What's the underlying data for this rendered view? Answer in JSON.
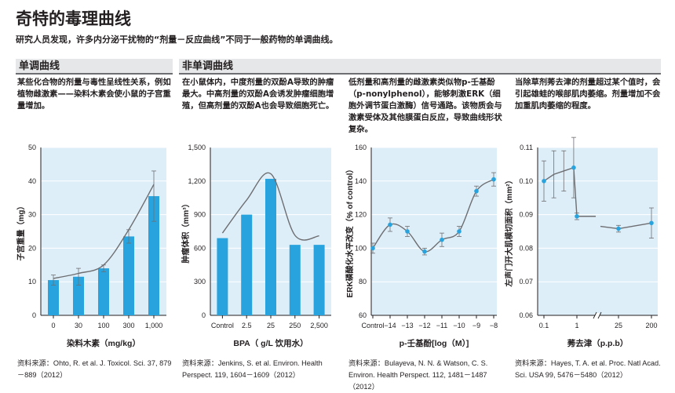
{
  "header": {
    "title": "奇特的毒理曲线",
    "subtitle": "研究人员发现，许多内分泌干扰物的“剂量－反应曲线”不同于一般药物的单调曲线。"
  },
  "sections": [
    {
      "title": "单调曲线"
    },
    {
      "title": "非单调曲线"
    }
  ],
  "colors": {
    "bar": "#29a3dd",
    "line": "#6d6e71",
    "plot_bg": "#deeef9",
    "grid": "#ffffff",
    "point": "#29a3dd"
  },
  "panels": [
    {
      "description": "某些化合物的剂量与毒性呈线性关系，例如植物雌激素——染料木素会使小鼠的子宫重量增加。",
      "source": "资料来源：Ohto, R. et al. J. Toxicol. Sci. 37, 879－889（2012）"
    },
    {
      "description": "在小鼠体内，中度剂量的双酚A导致的肿瘤最大。中高剂量的双酚A会诱发肿瘤细胞增殖，但高剂量的双酚A也会导致细胞死亡。",
      "source": "资料来源：Jenkins, S. et al. Environ. Health Perspect. 119, 1604－1609（2012）"
    },
    {
      "description": "低剂量和高剂量的雌激素类似物p-壬基酚（p-nonylphenol），能够刺激ERK（细胞外调节蛋白激酶）信号通路。该物质会与激素受体及其他膜蛋白反应，导致曲线形状复杂。",
      "source": "资料来源：Bulayeva, N. N. & Watson, C. S. Environ. Health Perspect. 112, 1481－1487（2012）"
    },
    {
      "description": "当除草剂莠去津的剂量超过某个值时，会引起雄蛙的喉部肌肉萎缩。剂量增加不会加重肌肉萎缩的程度。",
      "source": "资料来源：Hayes, T. A. et al. Proc. Natl Acad. Sci. USA 99, 5476－5480（2012）"
    }
  ],
  "chart_data": [
    {
      "type": "bar",
      "title": "",
      "xlabel": "染料木素（mg/kg）",
      "ylabel": "子宫重量（mg）",
      "categories": [
        "0",
        "30",
        "100",
        "300",
        "1,000"
      ],
      "values": [
        10.5,
        11.5,
        14,
        23.5,
        35.5
      ],
      "errors": [
        1.5,
        2.5,
        1,
        2,
        7.5
      ],
      "curve": [
        11,
        12.5,
        15,
        25.5,
        39
      ],
      "ylim": [
        0,
        50
      ],
      "yticks": [
        "0",
        "10",
        "20",
        "30",
        "40",
        "50"
      ]
    },
    {
      "type": "bar",
      "title": "",
      "xlabel": "BPA（ g/L 饮用水）",
      "ylabel": "肿瘤体积（mm³）",
      "categories": [
        "Control",
        "2.5",
        "25",
        "250",
        "2,500"
      ],
      "values": [
        690,
        900,
        1220,
        630,
        630
      ],
      "errors": [
        0,
        0,
        0,
        0,
        0
      ],
      "curve": [
        735,
        1030,
        1265,
        715,
        710
      ],
      "ylim": [
        0,
        1500
      ],
      "yticks": [
        "0",
        "300",
        "600",
        "900",
        "1,200",
        "1,500"
      ]
    },
    {
      "type": "line",
      "title": "",
      "xlabel": "p-壬基酚[log（M）]",
      "ylabel": "ERK磷酸化水平改变（% of control）",
      "x_ticks": [
        "Control",
        "−14",
        "−13",
        "−12",
        "−11",
        "−10",
        "−9",
        "−8"
      ],
      "series": [
        {
          "values": [
            100,
            114,
            110,
            98,
            105,
            110,
            134,
            141
          ],
          "errors": [
            3,
            4,
            3,
            2,
            4,
            3,
            3,
            4
          ]
        }
      ],
      "ylim": [
        60,
        160
      ],
      "yticks": [
        "60",
        "80",
        "100",
        "120",
        "140",
        "160"
      ]
    },
    {
      "type": "line",
      "title": "",
      "xlabel": "莠去津（p.p.b）",
      "ylabel": "左声门开大肌横切面积（mm²）",
      "x_ticks": [
        "0.1",
        "1",
        "25",
        "200"
      ],
      "series": [
        {
          "x": [
            0.1,
            0.2,
            0.4,
            0.8,
            1.0
          ],
          "values": [
            0.1,
            0.102,
            0.103,
            0.104,
            0.0895
          ],
          "errors": [
            0.006,
            0.007,
            0.006,
            0.009,
            0.001
          ]
        },
        {
          "x": [
            6,
            25,
            200
          ],
          "values": [
            0.0865,
            0.0858,
            0.0875
          ],
          "errors": [
            0,
            0.001,
            0.0045
          ]
        }
      ],
      "ylim": [
        0.06,
        0.11
      ],
      "yticks": [
        "0.06",
        "0.07",
        "0.08",
        "0.09",
        "0.10",
        "0.11"
      ]
    }
  ]
}
